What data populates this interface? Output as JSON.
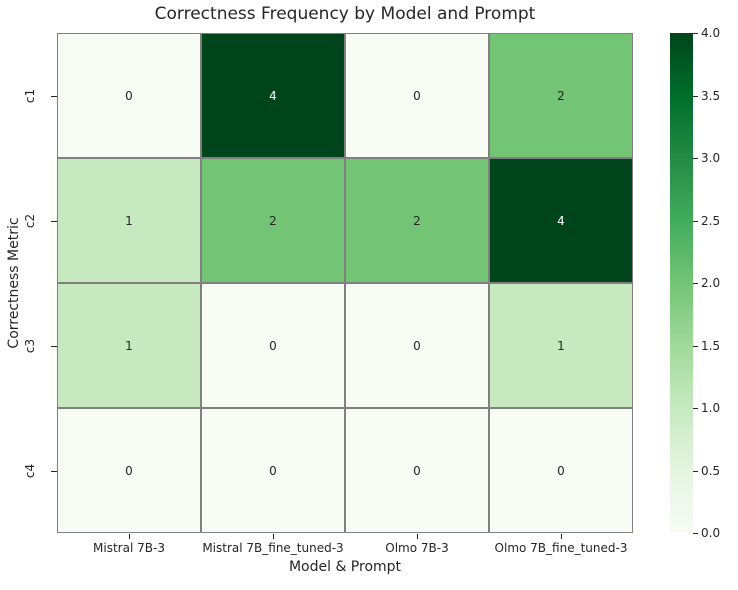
{
  "chart_data": {
    "type": "heatmap",
    "title": "Correctness Frequency by Model and Prompt",
    "xlabel": "Model & Prompt",
    "ylabel": "Correctness Metric",
    "columns": [
      "Mistral 7B-3",
      "Mistral 7B_fine_tuned-3",
      "Olmo 7B-3",
      "Olmo 7B_fine_tuned-3"
    ],
    "rows": [
      "c1",
      "c2",
      "c3",
      "c4"
    ],
    "values": [
      [
        0,
        4,
        0,
        2
      ],
      [
        1,
        2,
        2,
        4
      ],
      [
        1,
        0,
        0,
        1
      ],
      [
        0,
        0,
        0,
        0
      ]
    ],
    "vmin": 0,
    "vmax": 4,
    "colormap_name": "Greens",
    "colormap_stops": [
      "#f7fcf5",
      "#e5f5e0",
      "#c7e9c0",
      "#a1d99b",
      "#74c476",
      "#41ab5d",
      "#238b45",
      "#006d2c",
      "#00441b"
    ],
    "colorbar_tick_labels": [
      "4.0",
      "3.5",
      "3.0",
      "2.5",
      "2.0",
      "1.5",
      "1.0",
      "0.5",
      "0.0"
    ],
    "grid_line_color": "#808080",
    "annot_color_on_light": "#262626",
    "annot_color_on_dark": "#ffffff",
    "legend_position": "right",
    "grid": "off"
  }
}
